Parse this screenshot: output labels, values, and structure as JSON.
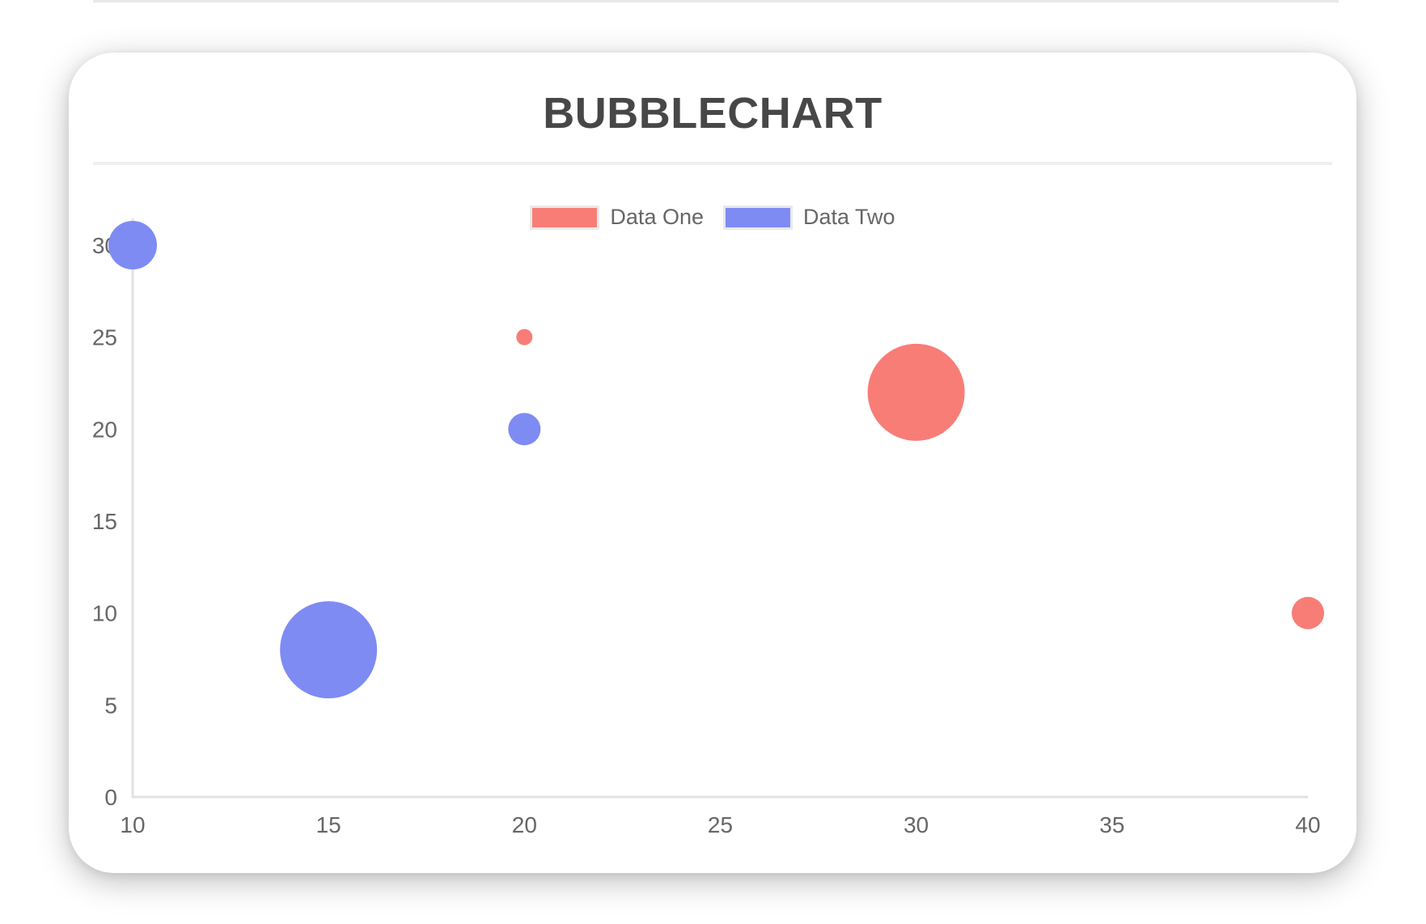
{
  "page": {
    "title": "BUBBLECHART"
  },
  "chart_data": {
    "type": "bubble",
    "title": "BUBBLECHART",
    "xlabel": "",
    "ylabel": "",
    "xlim": [
      10,
      40
    ],
    "ylim": [
      0,
      30
    ],
    "x_ticks": [
      "10",
      "15",
      "20",
      "25",
      "30",
      "35",
      "40"
    ],
    "y_ticks": [
      "0",
      "5",
      "10",
      "15",
      "20",
      "25",
      "30"
    ],
    "grid": false,
    "legend_position": "top-center",
    "series": [
      {
        "name": "Data One",
        "color": "#F87D77",
        "points": [
          {
            "x": 20,
            "y": 25,
            "r": 10
          },
          {
            "x": 30,
            "y": 22,
            "r": 60
          },
          {
            "x": 40,
            "y": 10,
            "r": 20
          }
        ]
      },
      {
        "name": "Data Two",
        "color": "#7E8BF2",
        "points": [
          {
            "x": 10,
            "y": 30,
            "r": 30
          },
          {
            "x": 20,
            "y": 20,
            "r": 20
          },
          {
            "x": 15,
            "y": 8,
            "r": 60
          }
        ]
      }
    ],
    "colors": {
      "axis_line": "#e2e2e2",
      "tick_text": "#666666",
      "title_text": "#474747"
    }
  }
}
